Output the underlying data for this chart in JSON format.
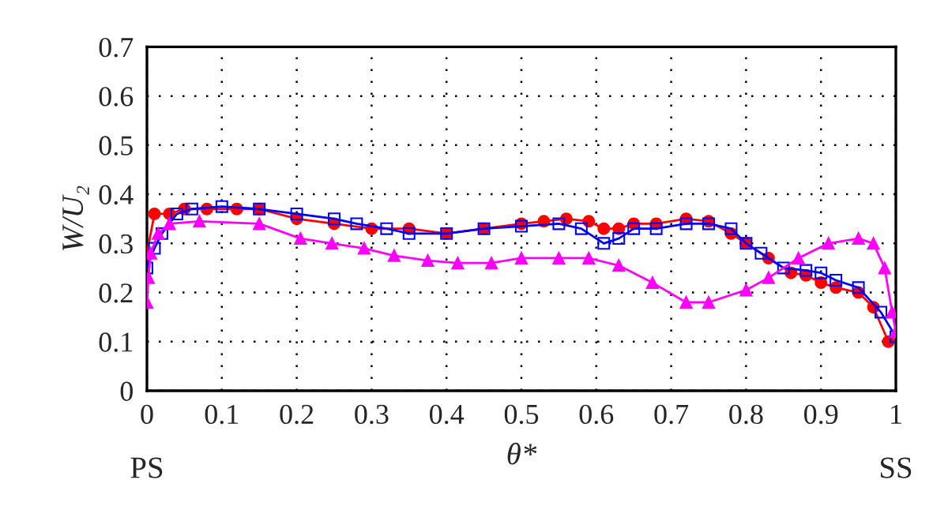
{
  "chart_data": {
    "type": "line",
    "xlabel": "θ*",
    "ylabel": "W/U₂",
    "annotations": [
      "PS",
      "SS"
    ],
    "xlim": [
      0,
      1
    ],
    "ylim": [
      0,
      0.7
    ],
    "xticks": [
      0,
      0.1,
      0.2,
      0.3,
      0.4,
      0.5,
      0.6,
      0.7,
      0.8,
      0.9,
      1
    ],
    "yticks": [
      0,
      0.1,
      0.2,
      0.3,
      0.4,
      0.5,
      0.6,
      0.7
    ],
    "grid": true,
    "line_style": "solid",
    "series": [
      {
        "color": "#ff0000",
        "marker": "circle",
        "x": [
          0,
          0.01,
          0.03,
          0.05,
          0.08,
          0.12,
          0.15,
          0.2,
          0.25,
          0.3,
          0.35,
          0.4,
          0.45,
          0.5,
          0.53,
          0.56,
          0.59,
          0.61,
          0.63,
          0.65,
          0.68,
          0.72,
          0.75,
          0.78,
          0.8,
          0.83,
          0.86,
          0.88,
          0.9,
          0.92,
          0.95,
          0.97,
          0.99
        ],
        "values": [
          0.28,
          0.36,
          0.36,
          0.37,
          0.37,
          0.37,
          0.37,
          0.35,
          0.34,
          0.33,
          0.33,
          0.32,
          0.33,
          0.34,
          0.345,
          0.35,
          0.345,
          0.33,
          0.33,
          0.34,
          0.34,
          0.35,
          0.345,
          0.32,
          0.3,
          0.27,
          0.24,
          0.235,
          0.22,
          0.21,
          0.2,
          0.17,
          0.1
        ]
      },
      {
        "color": "#0000ff",
        "marker": "square",
        "x": [
          0,
          0.01,
          0.02,
          0.04,
          0.06,
          0.1,
          0.15,
          0.2,
          0.25,
          0.28,
          0.32,
          0.35,
          0.4,
          0.45,
          0.5,
          0.55,
          0.58,
          0.61,
          0.63,
          0.65,
          0.68,
          0.72,
          0.75,
          0.78,
          0.8,
          0.82,
          0.85,
          0.88,
          0.9,
          0.92,
          0.95,
          0.98,
          1.0
        ],
        "values": [
          0.25,
          0.29,
          0.32,
          0.36,
          0.37,
          0.375,
          0.37,
          0.36,
          0.35,
          0.34,
          0.33,
          0.32,
          0.32,
          0.33,
          0.335,
          0.34,
          0.33,
          0.3,
          0.31,
          0.33,
          0.33,
          0.34,
          0.34,
          0.33,
          0.3,
          0.28,
          0.25,
          0.245,
          0.24,
          0.225,
          0.21,
          0.16,
          0.11
        ]
      },
      {
        "color": "#ff00ff",
        "marker": "triangle",
        "x": [
          0,
          0.002,
          0.005,
          0.015,
          0.03,
          0.07,
          0.15,
          0.205,
          0.247,
          0.29,
          0.33,
          0.375,
          0.415,
          0.46,
          0.5,
          0.55,
          0.59,
          0.63,
          0.675,
          0.72,
          0.75,
          0.8,
          0.83,
          0.87,
          0.91,
          0.95,
          0.97,
          0.985,
          0.995,
          1.0
        ],
        "values": [
          0.18,
          0.23,
          0.28,
          0.32,
          0.34,
          0.345,
          0.34,
          0.31,
          0.3,
          0.29,
          0.275,
          0.265,
          0.26,
          0.26,
          0.27,
          0.27,
          0.27,
          0.255,
          0.22,
          0.18,
          0.18,
          0.205,
          0.23,
          0.27,
          0.3,
          0.31,
          0.3,
          0.25,
          0.16,
          0.12
        ]
      }
    ]
  }
}
